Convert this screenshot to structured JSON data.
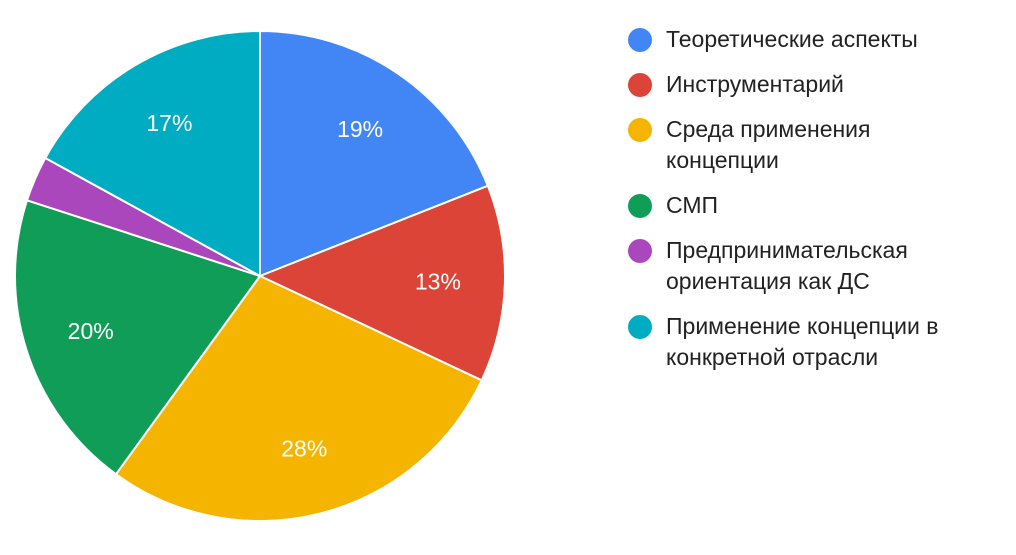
{
  "chart_data": {
    "type": "pie",
    "title": "",
    "legend_position": "right",
    "slices": [
      {
        "label": "Теоретические аспекты",
        "value": 19,
        "display": "19%",
        "color": "#4285F4"
      },
      {
        "label": "Инструментарий",
        "value": 13,
        "display": "13%",
        "color": "#DB4437"
      },
      {
        "label": "Среда применения концепции",
        "value": 28,
        "display": "28%",
        "color": "#F4B400"
      },
      {
        "label": "СМП",
        "value": 20,
        "display": "20%",
        "color": "#0F9D58"
      },
      {
        "label": "Предпринимательская ориентация как ДС",
        "value": 3,
        "display": "",
        "color": "#AB47BC"
      },
      {
        "label": "Применение концепции в конкретной отрасли",
        "value": 17,
        "display": "17%",
        "color": "#00ACC1"
      }
    ]
  }
}
